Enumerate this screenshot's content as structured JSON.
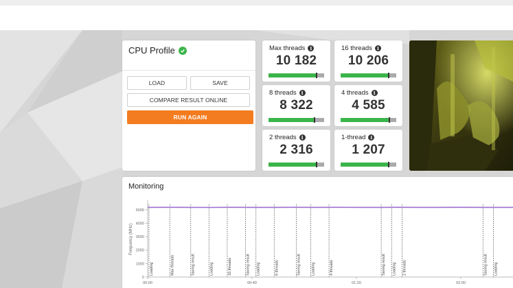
{
  "profile": {
    "title": "CPU Profile",
    "status_icon": "check-circle-icon",
    "buttons": {
      "load": "LOAD",
      "save": "SAVE",
      "compare": "COMPARE RESULT ONLINE",
      "run": "RUN AGAIN"
    }
  },
  "scores": [
    {
      "label": "Max threads",
      "value": "10 182",
      "fill": 0.87,
      "marker": 0.87
    },
    {
      "label": "16 threads",
      "value": "10 206",
      "fill": 0.87,
      "marker": 0.87
    },
    {
      "label": "8 threads",
      "value": "8 322",
      "fill": 0.83,
      "marker": 0.83
    },
    {
      "label": "4 threads",
      "value": "4 585",
      "fill": 0.88,
      "marker": 0.88
    },
    {
      "label": "2 threads",
      "value": "2 316",
      "fill": 0.86,
      "marker": 0.86
    },
    {
      "label": "1-thread",
      "value": "1 207",
      "fill": 0.87,
      "marker": 0.87
    }
  ],
  "colors": {
    "accent_orange": "#f47c20",
    "bar_green": "#3bb54a",
    "series_purple": "#9b6fd0"
  },
  "monitoring": {
    "title": "Monitoring",
    "chart_data": {
      "type": "line",
      "ylabel": "Frequency (MHz)",
      "yticks": [
        "0",
        "1000",
        "2000",
        "3000",
        "4000",
        "5000"
      ],
      "ylim": [
        0,
        5600
      ],
      "xticks": [
        "00:00",
        "00:40",
        "01:20",
        "02:00"
      ],
      "xlim": [
        0,
        140
      ],
      "series": [
        {
          "values": [
            [
              0,
              5170
            ],
            [
              8,
              5175
            ],
            [
              16,
              5170
            ],
            [
              24,
              5165
            ],
            [
              32,
              5175
            ],
            [
              40,
              5170
            ],
            [
              48,
              5170
            ],
            [
              56,
              5175
            ],
            [
              64,
              5170
            ],
            [
              72,
              5175
            ],
            [
              80,
              5170
            ],
            [
              88,
              5170
            ],
            [
              96,
              5175
            ],
            [
              104,
              5170
            ],
            [
              112,
              5170
            ],
            [
              120,
              5175
            ],
            [
              128,
              5170
            ],
            [
              136,
              5170
            ],
            [
              140,
              5170
            ]
          ]
        }
      ],
      "markers": [
        {
          "t": 0.5,
          "label": "Loading"
        },
        {
          "t": 8.5,
          "label": "Max threads"
        },
        {
          "t": 16.5,
          "label": "Saving result"
        },
        {
          "t": 23.5,
          "label": "Loading"
        },
        {
          "t": 30.5,
          "label": "16 threads"
        },
        {
          "t": 37.5,
          "label": "Saving result"
        },
        {
          "t": 41.5,
          "label": "Loading"
        },
        {
          "t": 48.5,
          "label": "8 threads"
        },
        {
          "t": 57.0,
          "label": "Saving result"
        },
        {
          "t": 62.5,
          "label": "Loading"
        },
        {
          "t": 69.5,
          "label": "4 threads"
        },
        {
          "t": 89.5,
          "label": "Saving result"
        },
        {
          "t": 93.5,
          "label": "Loading"
        },
        {
          "t": 97.5,
          "label": "2 threads"
        },
        {
          "t": 128.5,
          "label": "Saving result"
        },
        {
          "t": 132.5,
          "label": "Loading"
        }
      ]
    }
  }
}
